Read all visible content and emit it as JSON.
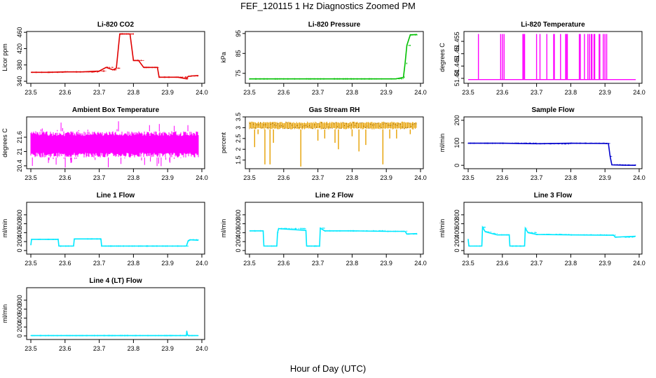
{
  "title": "FEF_120115  1 Hz Diagnostics Zoomed PM",
  "xlabel": "Hour of Day (UTC)",
  "chart_data": [
    {
      "type": "line",
      "title": "Li-820 CO2",
      "ylabel": "Licor ppm",
      "color": "#e00000",
      "xlim": [
        23.5,
        24.0
      ],
      "ylim": [
        335,
        462
      ],
      "xticks": [
        23.5,
        23.6,
        23.7,
        23.8,
        23.9,
        24.0
      ],
      "yticks": [
        340,
        380,
        420,
        460
      ],
      "x": [
        23.5,
        23.55,
        23.6,
        23.65,
        23.7,
        23.72,
        23.74,
        23.75,
        23.76,
        23.77,
        23.78,
        23.79,
        23.8,
        23.81,
        23.815,
        23.83,
        23.84,
        23.85,
        23.87,
        23.875,
        23.89,
        23.91,
        23.93,
        23.955,
        23.96,
        23.97,
        23.99
      ],
      "y": [
        362,
        362,
        363,
        363,
        365,
        374,
        368,
        372,
        456,
        456,
        456,
        456,
        391,
        391,
        391,
        374,
        374,
        374,
        374,
        350,
        350,
        350,
        350,
        346,
        352,
        353,
        354
      ]
    },
    {
      "type": "line",
      "title": "Li-820 Pressure",
      "ylabel": "kPa",
      "color": "#00c000",
      "xlim": [
        23.5,
        24.0
      ],
      "ylim": [
        70,
        96
      ],
      "xticks": [
        23.5,
        23.6,
        23.7,
        23.8,
        23.9,
        24.0
      ],
      "yticks": [
        75,
        85,
        95
      ],
      "x": [
        23.5,
        23.6,
        23.7,
        23.8,
        23.9,
        23.925,
        23.93,
        23.95,
        23.955,
        23.96,
        23.97,
        23.99
      ],
      "y": [
        72.2,
        72.2,
        72.2,
        72.2,
        72.2,
        72.2,
        72.3,
        73,
        80,
        89,
        94.3,
        94.5
      ]
    },
    {
      "type": "line",
      "title": "Li-820 Temperature",
      "ylabel": "degrees C",
      "color": "#ff00ff",
      "xlim": [
        23.5,
        24.0
      ],
      "ylim": [
        51.438,
        51.459
      ],
      "xticks": [
        23.5,
        23.6,
        23.7,
        23.8,
        23.9,
        24.0
      ],
      "yticks": [
        51.44,
        51.445,
        51.45,
        51.455
      ],
      "baseline": 51.4395,
      "spike_value": 51.458,
      "spikes": [
        23.53,
        23.595,
        23.6,
        23.605,
        23.66,
        23.662,
        23.665,
        23.7,
        23.71,
        23.73,
        23.75,
        23.752,
        23.77,
        23.785,
        23.787,
        23.79,
        23.825,
        23.828,
        23.84,
        23.85,
        23.855,
        23.86,
        23.862,
        23.868,
        23.87,
        23.883,
        23.885,
        23.895,
        23.9,
        23.905
      ]
    },
    {
      "type": "line",
      "title": "Ambient Box Temperature",
      "ylabel": "degrees C",
      "color": "#ff00ff",
      "xlim": [
        23.5,
        24.0
      ],
      "ylim": [
        20.28,
        22.45
      ],
      "xticks": [
        23.5,
        23.6,
        23.7,
        23.8,
        23.9,
        24.0
      ],
      "yticks": [
        20.4,
        21.0,
        21.6
      ],
      "band_low": 20.75,
      "band_high": 21.85,
      "min_value": 20.33,
      "max_value": 22.28
    },
    {
      "type": "line",
      "title": "Gas Stream RH",
      "ylabel": "percent",
      "color": "#e6a000",
      "xlim": [
        23.5,
        24.0
      ],
      "ylim": [
        1.1,
        3.5
      ],
      "xticks": [
        23.5,
        23.6,
        23.7,
        23.8,
        23.9,
        24.0
      ],
      "yticks": [
        1.5,
        2.0,
        2.5,
        3.0,
        3.5
      ],
      "base_value": 3.1,
      "band_half": 0.18,
      "dips": [
        [
          23.515,
          2.1
        ],
        [
          23.525,
          2.7
        ],
        [
          23.545,
          1.3
        ],
        [
          23.56,
          1.3
        ],
        [
          23.57,
          2.3
        ],
        [
          23.65,
          1.2
        ],
        [
          23.7,
          2.4
        ],
        [
          23.72,
          2.5
        ],
        [
          23.75,
          2.3
        ],
        [
          23.76,
          2.0
        ],
        [
          23.8,
          2.6
        ],
        [
          23.82,
          1.9
        ],
        [
          23.84,
          2.2
        ],
        [
          23.89,
          1.3
        ],
        [
          23.91,
          2.5
        ],
        [
          23.93,
          2.5
        ],
        [
          23.97,
          2.7
        ]
      ]
    },
    {
      "type": "line",
      "title": "Sample Flow",
      "ylabel": "ml/min",
      "color": "#0000cc",
      "xlim": [
        23.5,
        24.0
      ],
      "ylim": [
        -15,
        215
      ],
      "xticks": [
        23.5,
        23.6,
        23.7,
        23.8,
        23.9,
        24.0
      ],
      "yticks": [
        0,
        100,
        200
      ],
      "x": [
        23.5,
        23.6,
        23.7,
        23.8,
        23.9,
        23.91,
        23.915,
        23.92,
        23.95,
        23.99
      ],
      "y": [
        98,
        98,
        96,
        98,
        97,
        97,
        40,
        2,
        1,
        0
      ]
    },
    {
      "type": "line",
      "title": "Line 1 Flow",
      "ylabel": "ml/min",
      "color": "#00e8ff",
      "xlim": [
        23.5,
        24.0
      ],
      "ylim": [
        -80,
        1080
      ],
      "xticks": [
        23.5,
        23.6,
        23.7,
        23.8,
        23.9,
        24.0
      ],
      "yticks": [
        0,
        200,
        400,
        600,
        800
      ],
      "x": [
        23.5,
        23.502,
        23.58,
        23.582,
        23.625,
        23.627,
        23.705,
        23.707,
        23.8,
        23.9,
        23.955,
        23.96,
        23.965,
        23.99
      ],
      "y": [
        120,
        250,
        250,
        100,
        100,
        260,
        260,
        100,
        100,
        100,
        100,
        220,
        240,
        230
      ]
    },
    {
      "type": "line",
      "title": "Line 2 Flow",
      "ylabel": "ml/min",
      "color": "#00e8ff",
      "xlim": [
        23.5,
        24.0
      ],
      "ylim": [
        -80,
        1080
      ],
      "xticks": [
        23.5,
        23.6,
        23.7,
        23.8,
        23.9,
        24.0
      ],
      "yticks": [
        0,
        200,
        400,
        600,
        800
      ],
      "x": [
        23.5,
        23.54,
        23.542,
        23.58,
        23.582,
        23.585,
        23.665,
        23.667,
        23.705,
        23.707,
        23.72,
        23.8,
        23.9,
        23.955,
        23.96,
        23.99
      ],
      "y": [
        440,
        440,
        100,
        100,
        400,
        490,
        450,
        100,
        100,
        500,
        440,
        440,
        430,
        430,
        370,
        380
      ]
    },
    {
      "type": "line",
      "title": "Line 3 Flow",
      "ylabel": "ml/min",
      "color": "#00e8ff",
      "xlim": [
        23.5,
        24.0
      ],
      "ylim": [
        -80,
        1080
      ],
      "xticks": [
        23.5,
        23.6,
        23.7,
        23.8,
        23.9,
        24.0
      ],
      "yticks": [
        0,
        200,
        400,
        600,
        800
      ],
      "x": [
        23.5,
        23.502,
        23.54,
        23.542,
        23.55,
        23.57,
        23.585,
        23.62,
        23.622,
        23.665,
        23.667,
        23.675,
        23.7,
        23.8,
        23.9,
        23.925,
        23.93,
        23.99
      ],
      "y": [
        250,
        100,
        100,
        520,
        420,
        380,
        350,
        350,
        100,
        100,
        500,
        400,
        360,
        350,
        345,
        345,
        300,
        320
      ]
    },
    {
      "type": "line",
      "title": "Line 4 (LT) Flow",
      "ylabel": "ml/min",
      "color": "#00e8ff",
      "xlim": [
        23.5,
        24.0
      ],
      "ylim": [
        -80,
        1080
      ],
      "xticks": [
        23.5,
        23.6,
        23.7,
        23.8,
        23.9,
        24.0
      ],
      "yticks": [
        0,
        200,
        400,
        600,
        800
      ],
      "x": [
        23.5,
        23.6,
        23.7,
        23.8,
        23.9,
        23.955,
        23.956,
        23.958,
        23.96,
        23.99
      ],
      "y": [
        8,
        8,
        8,
        8,
        8,
        8,
        110,
        25,
        8,
        8
      ]
    }
  ]
}
